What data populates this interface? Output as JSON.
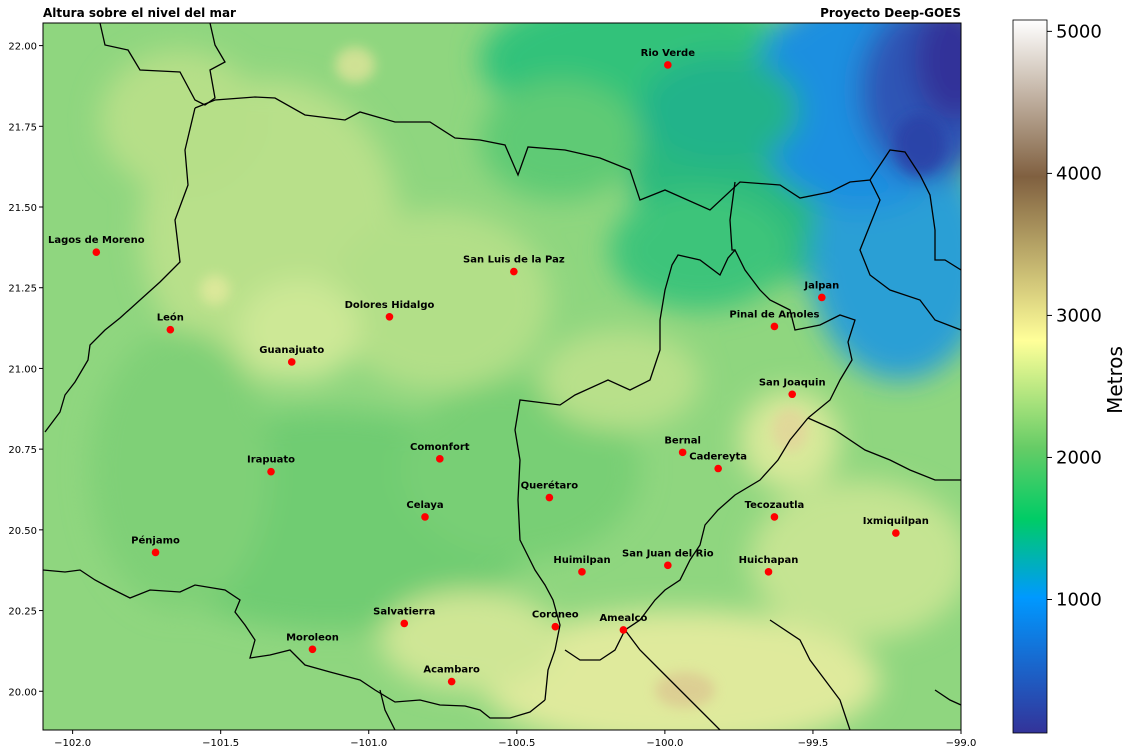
{
  "header": {
    "title_left": "Altura sobre el nivel del mar",
    "title_right": "Proyecto Deep-GOES"
  },
  "map": {
    "lon_range": [
      -102.1,
      -99.0
    ],
    "lat_range": [
      19.88,
      22.07
    ],
    "x_ticks": [
      {
        "value": -102.0,
        "label": "−102.0"
      },
      {
        "value": -101.5,
        "label": "−101.5"
      },
      {
        "value": -101.0,
        "label": "−101.0"
      },
      {
        "value": -100.5,
        "label": "−100.5"
      },
      {
        "value": -100.0,
        "label": "−100.0"
      },
      {
        "value": -99.5,
        "label": "−99.5"
      },
      {
        "value": -99.0,
        "label": "−99.0"
      }
    ],
    "y_ticks": [
      {
        "value": 20.0,
        "label": "20.00"
      },
      {
        "value": 20.25,
        "label": "20.25"
      },
      {
        "value": 20.5,
        "label": "20.50"
      },
      {
        "value": 20.75,
        "label": "20.75"
      },
      {
        "value": 21.0,
        "label": "21.00"
      },
      {
        "value": 21.25,
        "label": "21.25"
      },
      {
        "value": 21.5,
        "label": "21.50"
      },
      {
        "value": 21.75,
        "label": "21.75"
      },
      {
        "value": 22.0,
        "label": "22.00"
      }
    ],
    "cities": [
      {
        "name": "Rio Verde",
        "lon": -99.99,
        "lat": 21.94
      },
      {
        "name": "Lagos de Moreno",
        "lon": -101.92,
        "lat": 21.36
      },
      {
        "name": "San Luis de la Paz",
        "lon": -100.51,
        "lat": 21.3
      },
      {
        "name": "Jalpan",
        "lon": -99.47,
        "lat": 21.22
      },
      {
        "name": "Dolores Hidalgo",
        "lon": -100.93,
        "lat": 21.16
      },
      {
        "name": "Pinal de Amoles",
        "lon": -99.63,
        "lat": 21.13
      },
      {
        "name": "León",
        "lon": -101.67,
        "lat": 21.12
      },
      {
        "name": "Guanajuato",
        "lon": -101.26,
        "lat": 21.02
      },
      {
        "name": "San Joaquin",
        "lon": -99.57,
        "lat": 20.92
      },
      {
        "name": "Bernal",
        "lon": -99.94,
        "lat": 20.74
      },
      {
        "name": "Comonfort",
        "lon": -100.76,
        "lat": 20.72
      },
      {
        "name": "Cadereyta",
        "lon": -99.82,
        "lat": 20.69
      },
      {
        "name": "Irapuato",
        "lon": -101.33,
        "lat": 20.68
      },
      {
        "name": "Querétaro",
        "lon": -100.39,
        "lat": 20.6
      },
      {
        "name": "Celaya",
        "lon": -100.81,
        "lat": 20.54
      },
      {
        "name": "Tecozautla",
        "lon": -99.63,
        "lat": 20.54
      },
      {
        "name": "Ixmiquilpan",
        "lon": -99.22,
        "lat": 20.49
      },
      {
        "name": "Pénjamo",
        "lon": -101.72,
        "lat": 20.43
      },
      {
        "name": "San Juan del Rio",
        "lon": -99.99,
        "lat": 20.39
      },
      {
        "name": "Huimilpan",
        "lon": -100.28,
        "lat": 20.37
      },
      {
        "name": "Huichapan",
        "lon": -99.65,
        "lat": 20.37
      },
      {
        "name": "Salvatierra",
        "lon": -100.88,
        "lat": 20.21
      },
      {
        "name": "Coroneo",
        "lon": -100.37,
        "lat": 20.2
      },
      {
        "name": "Amealco",
        "lon": -100.14,
        "lat": 20.19
      },
      {
        "name": "Moroleon",
        "lon": -101.19,
        "lat": 20.13
      },
      {
        "name": "Acambaro",
        "lon": -100.72,
        "lat": 20.03
      }
    ]
  },
  "colorbar": {
    "label": "Metros",
    "range": [
      60,
      5080
    ],
    "ticks": [
      {
        "value": 1000,
        "label": "1000"
      },
      {
        "value": 2000,
        "label": "2000"
      },
      {
        "value": 3000,
        "label": "3000"
      },
      {
        "value": 4000,
        "label": "4000"
      },
      {
        "value": 5000,
        "label": "5000"
      }
    ],
    "colormap": [
      "#333399",
      "#0099ff",
      "#00cc66",
      "#66cc66",
      "#ffff99",
      "#806040",
      "#ffffff"
    ]
  }
}
